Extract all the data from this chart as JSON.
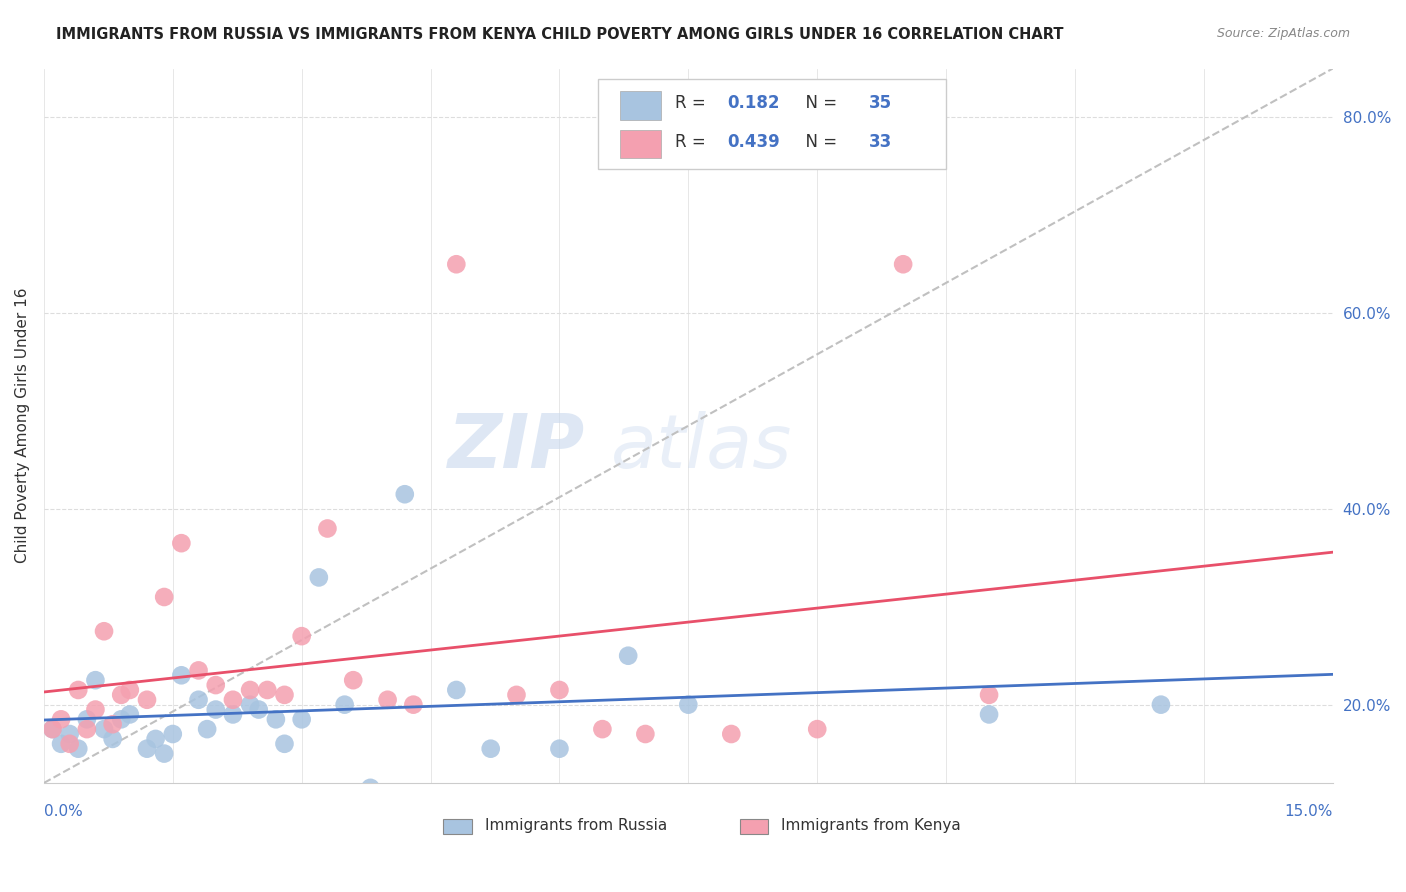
{
  "title": "IMMIGRANTS FROM RUSSIA VS IMMIGRANTS FROM KENYA CHILD POVERTY AMONG GIRLS UNDER 16 CORRELATION CHART",
  "source": "Source: ZipAtlas.com",
  "ylabel": "Child Poverty Among Girls Under 16",
  "xmin": 0.0,
  "xmax": 0.15,
  "ymin": 0.12,
  "ymax": 0.85,
  "yticks": [
    0.2,
    0.4,
    0.6,
    0.8
  ],
  "ytick_labels": [
    "20.0%",
    "40.0%",
    "60.0%",
    "80.0%"
  ],
  "russia_r": "0.182",
  "russia_n": "35",
  "kenya_r": "0.439",
  "kenya_n": "33",
  "russia_color": "#a8c4e0",
  "kenya_color": "#f4a0b0",
  "russia_line_color": "#4472c4",
  "kenya_line_color": "#e8506a",
  "diagonal_color": "#c0c0c0",
  "background_color": "#ffffff",
  "watermark_zip": "ZIP",
  "watermark_atlas": "atlas",
  "russia_x": [
    0.001,
    0.002,
    0.003,
    0.004,
    0.005,
    0.006,
    0.007,
    0.008,
    0.009,
    0.01,
    0.012,
    0.013,
    0.014,
    0.015,
    0.016,
    0.018,
    0.019,
    0.02,
    0.022,
    0.024,
    0.025,
    0.027,
    0.028,
    0.03,
    0.032,
    0.035,
    0.038,
    0.042,
    0.048,
    0.052,
    0.06,
    0.068,
    0.075,
    0.11,
    0.13
  ],
  "russia_y": [
    0.175,
    0.16,
    0.17,
    0.155,
    0.185,
    0.225,
    0.175,
    0.165,
    0.185,
    0.19,
    0.155,
    0.165,
    0.15,
    0.17,
    0.23,
    0.205,
    0.175,
    0.195,
    0.19,
    0.2,
    0.195,
    0.185,
    0.16,
    0.185,
    0.33,
    0.2,
    0.115,
    0.415,
    0.215,
    0.155,
    0.155,
    0.25,
    0.2,
    0.19,
    0.2
  ],
  "kenya_x": [
    0.001,
    0.002,
    0.003,
    0.004,
    0.005,
    0.006,
    0.007,
    0.008,
    0.009,
    0.01,
    0.012,
    0.014,
    0.016,
    0.018,
    0.02,
    0.022,
    0.024,
    0.026,
    0.028,
    0.03,
    0.033,
    0.036,
    0.04,
    0.043,
    0.048,
    0.055,
    0.06,
    0.065,
    0.07,
    0.08,
    0.09,
    0.1,
    0.11
  ],
  "kenya_y": [
    0.175,
    0.185,
    0.16,
    0.215,
    0.175,
    0.195,
    0.275,
    0.18,
    0.21,
    0.215,
    0.205,
    0.31,
    0.365,
    0.235,
    0.22,
    0.205,
    0.215,
    0.215,
    0.21,
    0.27,
    0.38,
    0.225,
    0.205,
    0.2,
    0.65,
    0.21,
    0.215,
    0.175,
    0.17,
    0.17,
    0.175,
    0.65,
    0.21
  ]
}
